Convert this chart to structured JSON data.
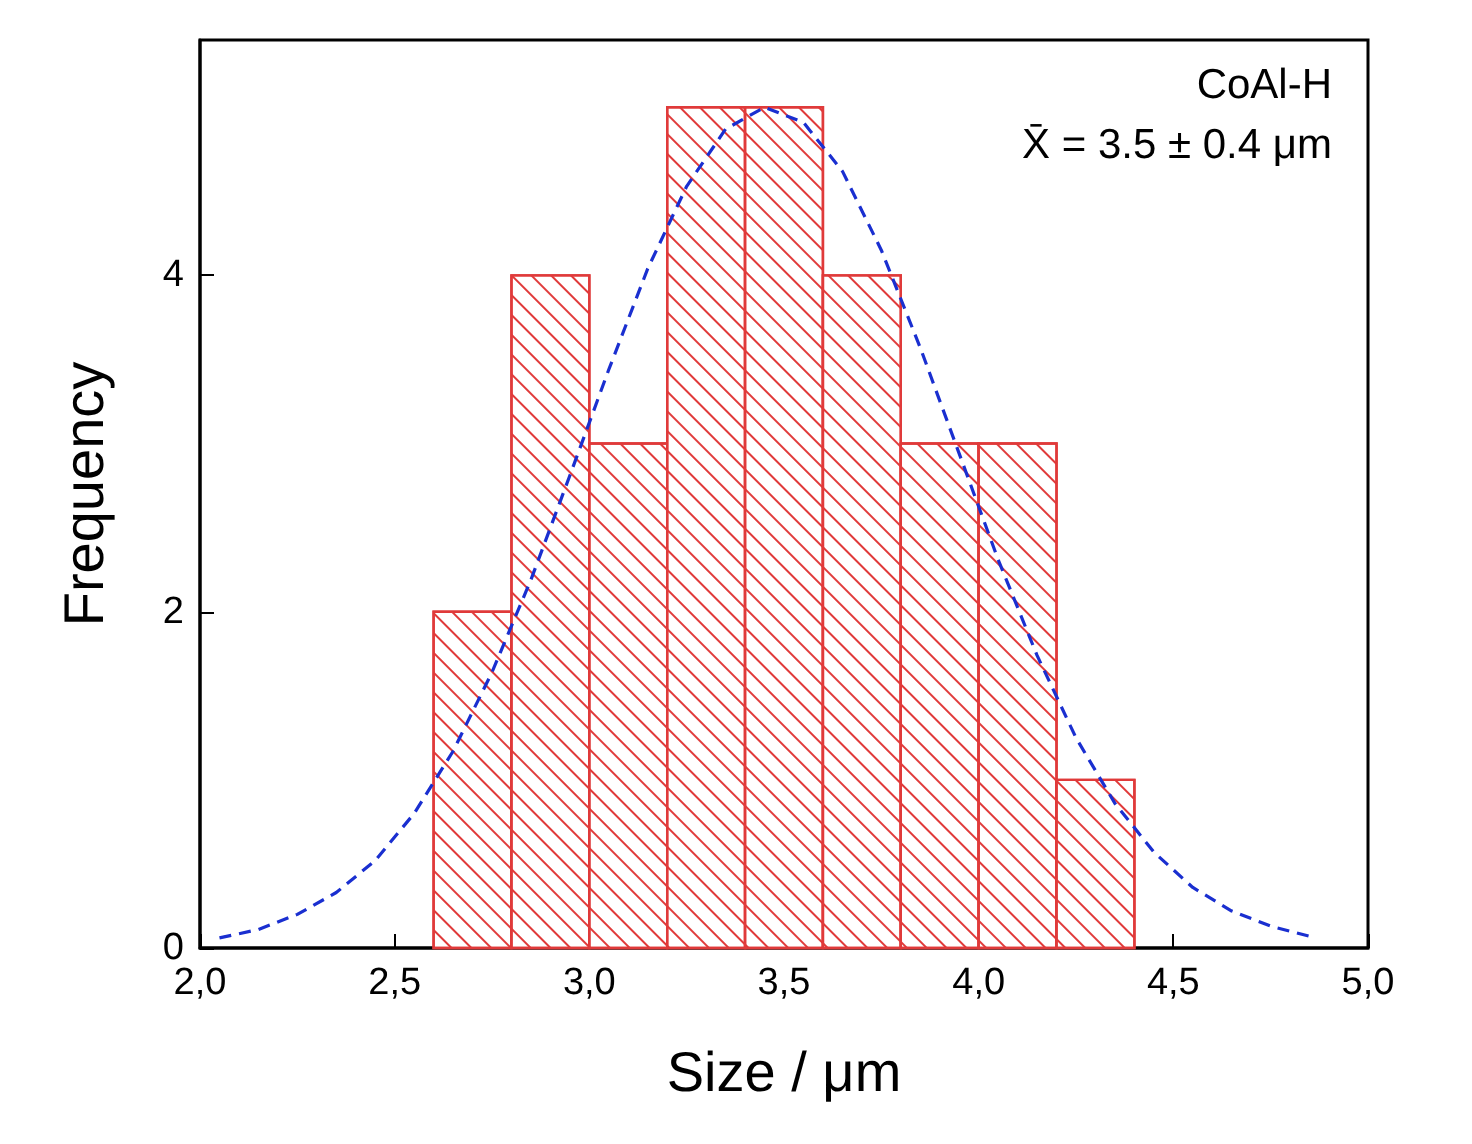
{
  "chart_data": {
    "type": "histogram",
    "xlabel": "Size / μm",
    "ylabel": "Frequency",
    "annotations": [
      "CoAl-H",
      "X̄ = 3.5 ± 0.4 μm"
    ],
    "bins": [
      2.6,
      2.8,
      3.0,
      3.2,
      3.4,
      3.6,
      3.8,
      4.0,
      4.2,
      4.4
    ],
    "values": [
      2,
      4,
      3,
      5,
      5,
      4,
      3,
      3,
      1
    ],
    "color": "#e03a3a",
    "series": [
      {
        "type": "line",
        "color": "#1a2fd0",
        "line_style": "dashed",
        "marker": "none",
        "x": [
          2.05,
          2.15,
          2.25,
          2.35,
          2.45,
          2.55,
          2.65,
          2.75,
          2.85,
          2.95,
          3.05,
          3.15,
          3.25,
          3.35,
          3.45,
          3.55,
          3.65,
          3.75,
          3.85,
          3.95,
          4.05,
          4.15,
          4.25,
          4.35,
          4.45,
          4.55,
          4.65,
          4.75,
          4.85
        ],
        "values": [
          0.06,
          0.11,
          0.2,
          0.33,
          0.52,
          0.8,
          1.17,
          1.64,
          2.19,
          2.81,
          3.44,
          4.04,
          4.53,
          4.87,
          5.0,
          4.91,
          4.62,
          4.15,
          3.57,
          2.94,
          2.31,
          1.74,
          1.25,
          0.86,
          0.57,
          0.36,
          0.22,
          0.13,
          0.07
        ]
      }
    ],
    "xlim": [
      2.0,
      5.0
    ],
    "xticks": [
      {
        "value": 2.0,
        "label": "2,0"
      },
      {
        "value": 2.5,
        "label": "2,5"
      },
      {
        "value": 3.0,
        "label": "3,0"
      },
      {
        "value": 3.5,
        "label": "3,5"
      },
      {
        "value": 4.0,
        "label": "4,0"
      },
      {
        "value": 4.5,
        "label": "4,5"
      },
      {
        "value": 5.0,
        "label": "5,0"
      }
    ],
    "ylim": [
      0,
      5.4
    ],
    "yticks": [
      0,
      2,
      4
    ],
    "grid": false
  }
}
